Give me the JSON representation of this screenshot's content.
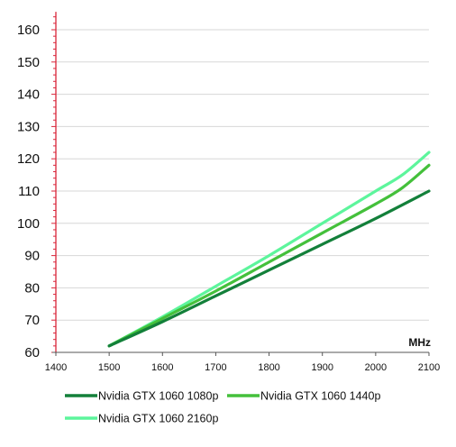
{
  "chart_data": {
    "type": "line",
    "x_unit": "MHz",
    "xlim": [
      1400,
      2100
    ],
    "ylim": [
      60,
      165
    ],
    "x_ticks": [
      "1400",
      "1500",
      "1600",
      "1700",
      "1800",
      "1900",
      "2000",
      "2100"
    ],
    "y_ticks": [
      "60",
      "70",
      "80",
      "90",
      "100",
      "110",
      "120",
      "130",
      "140",
      "150",
      "160"
    ],
    "grid": "horizontal",
    "legend_position": "bottom",
    "series": [
      {
        "name": "Nvidia GTX 1060 1080p",
        "color": "#13803a",
        "x": [
          1500,
          1600,
          1700,
          1800,
          1900,
          2000,
          2100
        ],
        "y": [
          62,
          69.5,
          77.5,
          85.5,
          93.5,
          101.5,
          110
        ]
      },
      {
        "name": "Nvidia GTX 1060 1440p",
        "color": "#44c03b",
        "x": [
          1500,
          1600,
          1700,
          1800,
          1900,
          2000,
          2050,
          2100
        ],
        "y": [
          62,
          70.5,
          79,
          88,
          97,
          106,
          111,
          118
        ]
      },
      {
        "name": "Nvidia GTX 1060 2160p",
        "color": "#5df59c",
        "x": [
          1500,
          1600,
          1700,
          1800,
          1900,
          2000,
          2050,
          2100
        ],
        "y": [
          62,
          71,
          80.5,
          90,
          100,
          110,
          115,
          122
        ]
      }
    ]
  }
}
